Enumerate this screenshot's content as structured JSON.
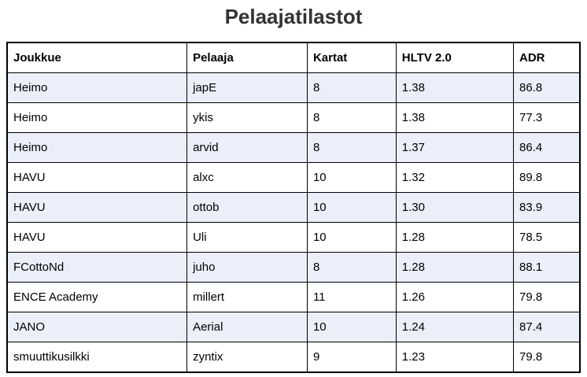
{
  "title": "Pelaajatilastot",
  "table": {
    "columns": [
      {
        "label": "Joukkue"
      },
      {
        "label": "Pelaaja"
      },
      {
        "label": "Kartat"
      },
      {
        "label": "HLTV 2.0"
      },
      {
        "label": "ADR"
      }
    ],
    "rows": [
      {
        "joukkue": "Heimo",
        "pelaaja": "japE",
        "kartat": "8",
        "hltv": "1.38",
        "adr": "86.8"
      },
      {
        "joukkue": "Heimo",
        "pelaaja": "ykis",
        "kartat": "8",
        "hltv": "1.38",
        "adr": "77.3"
      },
      {
        "joukkue": "Heimo",
        "pelaaja": "arvid",
        "kartat": "8",
        "hltv": "1.37",
        "adr": "86.4"
      },
      {
        "joukkue": "HAVU",
        "pelaaja": "alxc",
        "kartat": "10",
        "hltv": "1.32",
        "adr": "89.8"
      },
      {
        "joukkue": "HAVU",
        "pelaaja": "ottob",
        "kartat": "10",
        "hltv": "1.30",
        "adr": "83.9"
      },
      {
        "joukkue": "HAVU",
        "pelaaja": "Uli",
        "kartat": "10",
        "hltv": "1.28",
        "adr": "78.5"
      },
      {
        "joukkue": "FCottoNd",
        "pelaaja": "juho",
        "kartat": "8",
        "hltv": "1.28",
        "adr": "88.1"
      },
      {
        "joukkue": "ENCE Academy",
        "pelaaja": "millert",
        "kartat": "11",
        "hltv": "1.26",
        "adr": "79.8"
      },
      {
        "joukkue": "JANO",
        "pelaaja": "Aerial",
        "kartat": "10",
        "hltv": "1.24",
        "adr": "87.4"
      },
      {
        "joukkue": "smuuttikusilkki",
        "pelaaja": "zyntix",
        "kartat": "9",
        "hltv": "1.23",
        "adr": "79.8"
      }
    ]
  },
  "colors": {
    "stripe_row_background": "#EAEFFA",
    "table_border": "#000000",
    "title_text": "#333333",
    "cell_text": "#000000",
    "page_background": "#FFFFFF"
  }
}
